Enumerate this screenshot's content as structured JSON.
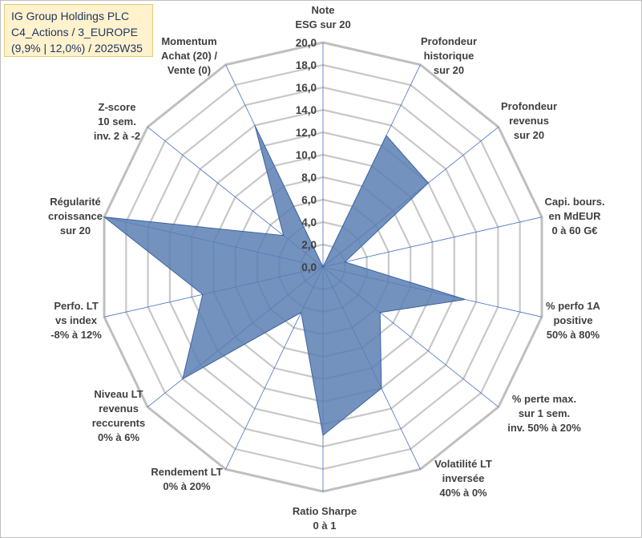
{
  "title_lines": [
    "IG Group Holdings PLC",
    "C4_Actions / 3_EUROPE",
    "(9,9% | 12,0%) / 2025W35"
  ],
  "chart_data": {
    "type": "radar",
    "categories": [
      [
        "Note",
        "ESG sur 20"
      ],
      [
        "Profondeur",
        "historique",
        "sur 20"
      ],
      [
        "Profondeur",
        "revenus",
        "sur 20"
      ],
      [
        "Capi. bours.",
        "en MdEUR",
        "0 à 60 G€"
      ],
      [
        "% perfo 1A",
        "positive",
        "50% à 80%"
      ],
      [
        "% perte max.",
        "sur 1 sem.",
        "inv. 50% à 20%"
      ],
      [
        "Volatilité LT",
        "inversée",
        "40% à 0%"
      ],
      [
        "Ratio Sharpe",
        "0 à 1"
      ],
      [
        "Rendement LT",
        "0% à 20%"
      ],
      [
        "Niveau LT",
        "revenus",
        "reccurents",
        "0% à 6%"
      ],
      [
        "Perfo. LT",
        "vs index",
        "-8% à 12%"
      ],
      [
        "Régularité",
        "croissance",
        "sur 20"
      ],
      [
        "Z-score",
        "10 sem.",
        "inv. 2 à -2"
      ],
      [
        "Momentum",
        "Achat (20) /",
        "Vente (0)"
      ]
    ],
    "values": [
      0.0,
      13.0,
      12.0,
      2.0,
      13.0,
      6.5,
      12.0,
      15.0,
      4.5,
      16.0,
      11.0,
      20.0,
      4.5,
      14.0
    ],
    "ylim": [
      0,
      20
    ],
    "ticks": [
      "0,0",
      "2,0",
      "4,0",
      "6,0",
      "8,0",
      "10,0",
      "12,0",
      "14,0",
      "16,0",
      "18,0",
      "20,0"
    ],
    "grid": true,
    "legend": "none",
    "colors": {
      "fill": "#5b7fb3",
      "stroke": "#3e63a3",
      "grid": "#c8c8c8",
      "spoke": "#4472c4"
    }
  }
}
